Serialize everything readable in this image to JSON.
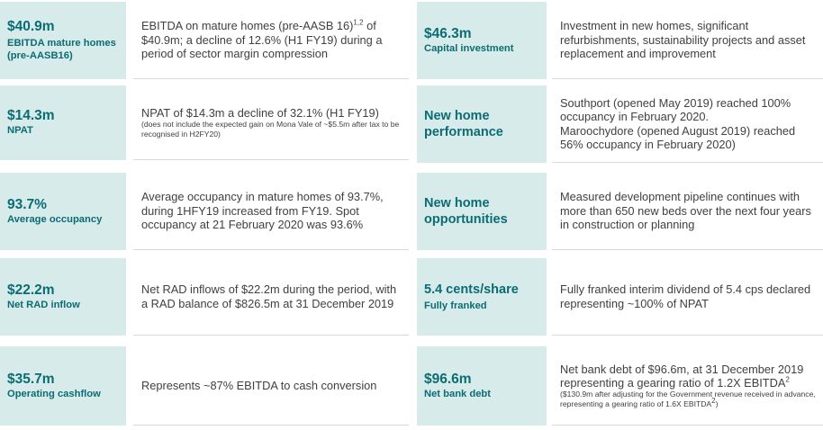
{
  "left": [
    {
      "metric": "$40.9m",
      "label": "EBITDA mature homes (pre-AASB16)",
      "text": "EBITDA on mature homes (pre-AASB 16)",
      "sup": "1,2",
      "text2": " of $40.9m; a decline of 12.6% (H1 FY19) during a period of sector margin compression"
    },
    {
      "metric": "$14.3m",
      "label": "NPAT",
      "text": "NPAT of $14.3m a decline of 32.1% (H1 FY19)",
      "note": "(does not include the expected gain on Mona Vale of ~$5.5m after tax to be recognised in H2FY20)"
    },
    {
      "metric": "93.7%",
      "label": "Average occupancy",
      "text": "Average occupancy in mature homes of 93.7%, during 1HFY19 increased from FY19. Spot occupancy at 21 February 2020 was 93.6%"
    },
    {
      "metric": "$22.2m",
      "label": "Net RAD inflow",
      "text": "Net RAD inflows of $22.2m during the period, with a RAD balance of $826.5m at 31 December 2019"
    },
    {
      "metric": "$35.7m",
      "label": "Operating cashflow",
      "text": "Represents ~87% EBITDA to cash conversion"
    }
  ],
  "right": [
    {
      "metric": "$46.3m",
      "label": "Capital investment",
      "text": "Investment in new homes, significant refurbishments, sustainability projects and asset replacement and improvement"
    },
    {
      "heading": "New home performance",
      "text": "Southport (opened May 2019) reached 100% occupancy in February 2020.",
      "text2": "Maroochydore (opened August 2019) reached 56% occupancy in February 2020)"
    },
    {
      "heading": "New home opportunities",
      "text": "Measured development pipeline continues with more than 650 new beds over the next four years in construction or planning"
    },
    {
      "metric": "5.4 cents/share",
      "label": "Fully franked",
      "text": "Fully franked interim dividend of 5.4 cps declared representing ~100% of NPAT"
    },
    {
      "metric": "$96.6m",
      "label": "Net bank debt",
      "text": "Net bank debt of $96.6m, at 31 December 2019 representing a gearing ratio of 1.2X EBITDA",
      "sup": "2",
      "note": "($130.9m after adjusting for the Government revenue received in advance, representing a gearing ratio of 1.6X EBITDA",
      "note_sup": "2",
      "note_end": ")"
    }
  ]
}
